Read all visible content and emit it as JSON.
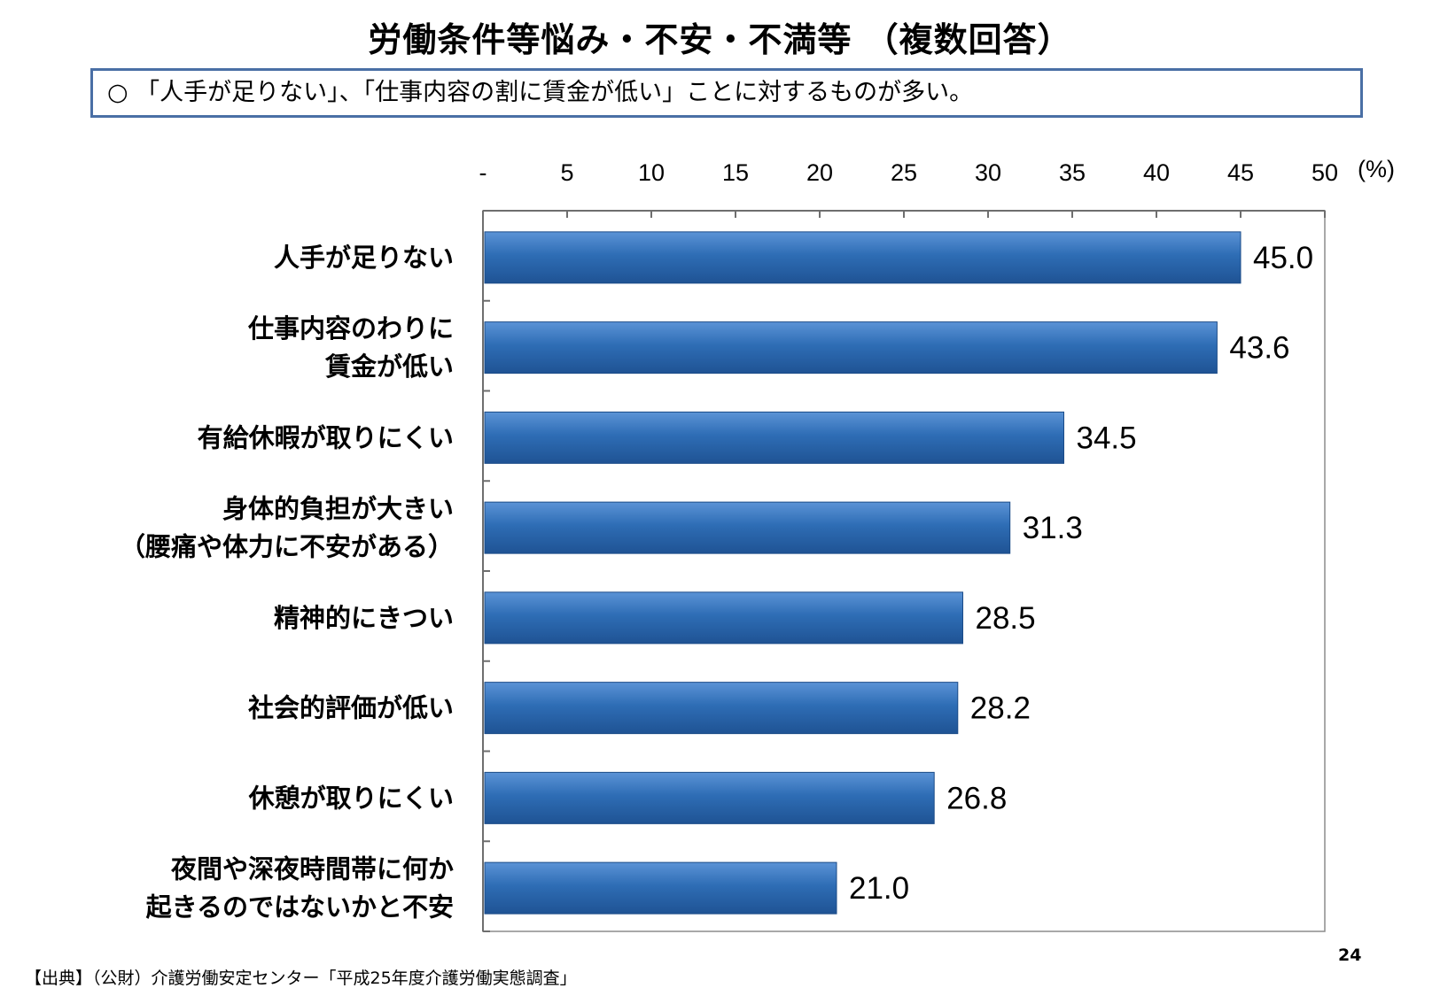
{
  "page": {
    "title": "労働条件等悩み・不安・不満等 （複数回答）",
    "summary": "○ 「人手が足りない」、「仕事内容の割に賃金が低い」ことに対するものが多い。",
    "source": "【出典】（公財）介護労働安定センター「平成25年度介護労働実態調査」",
    "page_number": "24"
  },
  "chart_data": {
    "type": "bar",
    "orientation": "horizontal",
    "unit_label": "(%)",
    "xlim": [
      0,
      50
    ],
    "x_ticks": [
      "-",
      "5",
      "10",
      "15",
      "20",
      "25",
      "30",
      "35",
      "40",
      "45",
      "50"
    ],
    "categories": [
      [
        "人手が足りない"
      ],
      [
        "仕事内容のわりに",
        "賃金が低い"
      ],
      [
        "有給休暇が取りにくい"
      ],
      [
        "身体的負担が大きい",
        "（腰痛や体力に不安がある）"
      ],
      [
        "精神的にきつい"
      ],
      [
        "社会的評価が低い"
      ],
      [
        "休憩が取りにくい"
      ],
      [
        "夜間や深夜時間帯に何か",
        "起きるのではないかと不安"
      ]
    ],
    "values": [
      45.0,
      43.6,
      34.5,
      31.3,
      28.5,
      28.2,
      26.8,
      21.0
    ],
    "value_labels": [
      "45.0",
      "43.6",
      "34.5",
      "31.3",
      "28.5",
      "28.2",
      "26.8",
      "21.0"
    ],
    "bar_color": "#2e6db5",
    "grid": false
  }
}
